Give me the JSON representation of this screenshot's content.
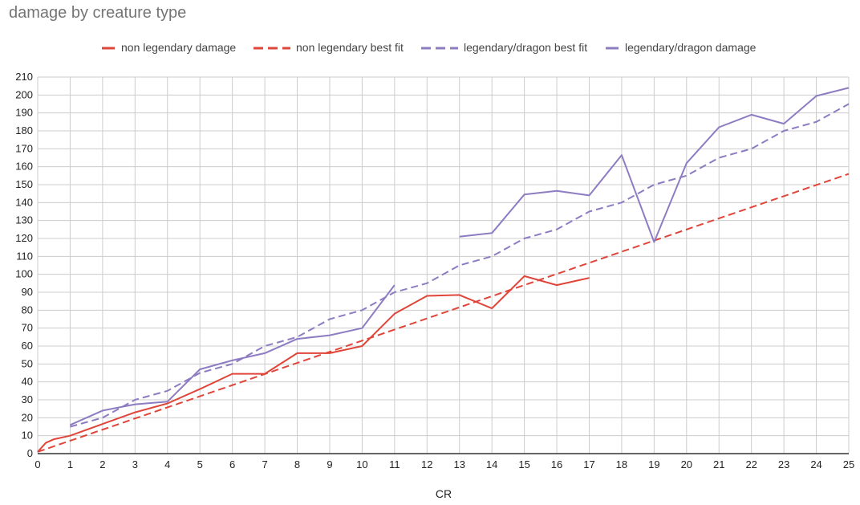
{
  "chart_data": {
    "type": "line",
    "title": "damage by creature type",
    "xlabel": "CR",
    "ylabel": "",
    "xlim": [
      0,
      25
    ],
    "ylim": [
      0,
      210
    ],
    "x_ticks": [
      "0",
      "1",
      "2",
      "3",
      "4",
      "5",
      "6",
      "7",
      "8",
      "9",
      "10",
      "11",
      "12",
      "13",
      "14",
      "15",
      "16",
      "17",
      "18",
      "19",
      "20",
      "21",
      "22",
      "23",
      "24",
      "25"
    ],
    "y_ticks": [
      "0",
      "10",
      "20",
      "30",
      "40",
      "50",
      "60",
      "70",
      "80",
      "90",
      "100",
      "110",
      "120",
      "130",
      "140",
      "150",
      "160",
      "170",
      "180",
      "190",
      "200",
      "210"
    ],
    "grid": true,
    "legend_position": "top",
    "series": [
      {
        "name": "non legendary damage",
        "color": "#e0453a",
        "style": "solid",
        "points": [
          [
            0,
            1
          ],
          [
            0.25,
            6
          ],
          [
            0.5,
            8
          ],
          [
            1,
            10
          ],
          [
            2,
            16.5
          ],
          [
            3,
            23
          ],
          [
            4,
            28
          ],
          [
            5,
            36
          ],
          [
            6,
            44.5
          ],
          [
            7,
            44.5
          ],
          [
            8,
            56
          ],
          [
            9,
            56
          ],
          [
            10,
            60
          ],
          [
            11,
            78
          ],
          [
            12,
            88
          ],
          [
            13,
            88.5
          ],
          [
            14,
            81
          ],
          [
            15,
            99
          ],
          [
            16,
            94
          ],
          [
            17,
            98
          ]
        ]
      },
      {
        "name": "non legendary best fit",
        "color": "#e0453a",
        "style": "dashed",
        "points": [
          [
            0,
            1
          ],
          [
            25,
            156
          ]
        ]
      },
      {
        "name": "legendary/dragon best fit",
        "color": "#8e7cc3",
        "style": "dashed",
        "points": [
          [
            1,
            15
          ],
          [
            2,
            20
          ],
          [
            3,
            30
          ],
          [
            4,
            35
          ],
          [
            5,
            45
          ],
          [
            6,
            50
          ],
          [
            7,
            60
          ],
          [
            8,
            65
          ],
          [
            9,
            75
          ],
          [
            10,
            80
          ],
          [
            11,
            90
          ],
          [
            12,
            95
          ],
          [
            13,
            105
          ],
          [
            14,
            110
          ],
          [
            15,
            120
          ],
          [
            16,
            125
          ],
          [
            17,
            135
          ],
          [
            18,
            140
          ],
          [
            19,
            150
          ],
          [
            20,
            155
          ],
          [
            21,
            165
          ],
          [
            22,
            170
          ],
          [
            23,
            180
          ],
          [
            24,
            185
          ],
          [
            25,
            195
          ]
        ]
      },
      {
        "name": "legendary/dragon damage",
        "color": "#8e7cc3",
        "style": "solid",
        "segments": [
          [
            [
              1,
              16
            ],
            [
              2,
              24
            ],
            [
              3,
              27.5
            ],
            [
              4,
              29
            ],
            [
              5,
              47
            ],
            [
              6,
              52
            ],
            [
              7,
              56
            ],
            [
              8,
              64
            ],
            [
              9,
              66
            ],
            [
              10,
              70
            ],
            [
              11,
              94
            ]
          ],
          [
            [
              13,
              121
            ],
            [
              14,
              123
            ],
            [
              15,
              144.5
            ],
            [
              16,
              146.5
            ],
            [
              17,
              144
            ],
            [
              18,
              166.5
            ],
            [
              19,
              118
            ],
            [
              20,
              162
            ],
            [
              21,
              182
            ],
            [
              22,
              189
            ],
            [
              23,
              184
            ],
            [
              24,
              199.5
            ],
            [
              25,
              204
            ]
          ]
        ]
      }
    ]
  }
}
